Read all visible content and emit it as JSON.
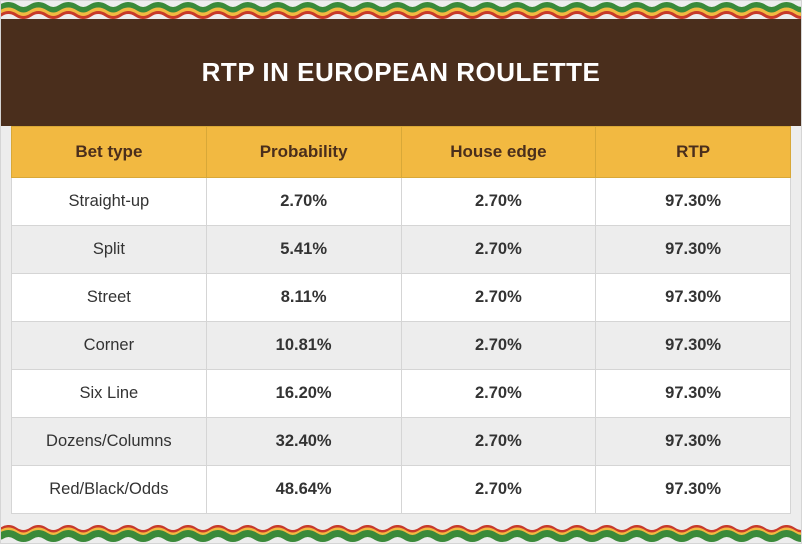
{
  "title": "RTP IN EUROPEAN ROULETTE",
  "colors": {
    "header_bg": "#4a2e1c",
    "header_text": "#ffffff",
    "th_bg": "#f2b941",
    "th_text": "#4a2e1c",
    "th_border": "#d8a838",
    "row_white": "#ffffff",
    "row_grey": "#ededed",
    "cell_border": "#d5d5d5",
    "cell_text": "#333333",
    "wave_green": "#3a8a3a",
    "wave_yellow": "#f2b941",
    "wave_red": "#c83a2a"
  },
  "columns": [
    "Bet type",
    "Probability",
    "House edge",
    "RTP"
  ],
  "rows": [
    [
      "Straight-up",
      "2.70%",
      "2.70%",
      "97.30%"
    ],
    [
      "Split",
      "5.41%",
      "2.70%",
      "97.30%"
    ],
    [
      "Street",
      "8.11%",
      "2.70%",
      "97.30%"
    ],
    [
      "Corner",
      "10.81%",
      "2.70%",
      "97.30%"
    ],
    [
      "Six Line",
      "16.20%",
      "2.70%",
      "97.30%"
    ],
    [
      "Dozens/Columns",
      "32.40%",
      "2.70%",
      "97.30%"
    ],
    [
      "Red/Black/Odds",
      "48.64%",
      "2.70%",
      "97.30%"
    ]
  ],
  "column_widths_pct": [
    25,
    25,
    25,
    25
  ],
  "title_fontsize": 26,
  "th_fontsize": 17,
  "td_fontsize": 16.5,
  "wave_amplitude": 5,
  "wave_period": 30
}
